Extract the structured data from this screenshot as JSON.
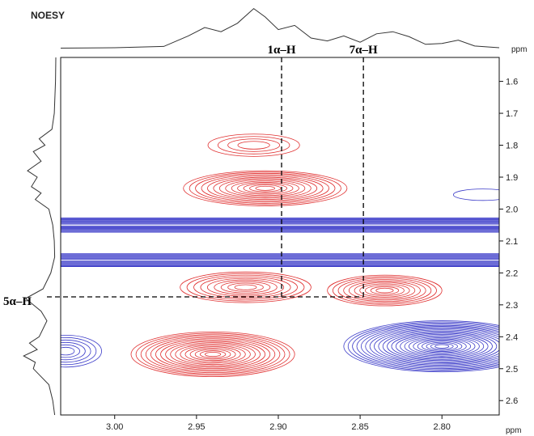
{
  "chart_data": {
    "type": "contour",
    "title": "NOESY",
    "x_unit": "ppm",
    "y_unit": "ppm",
    "xlim": [
      3.033,
      2.765
    ],
    "ylim": [
      1.525,
      2.645
    ],
    "x_ticks": [
      "3.00",
      "2.95",
      "2.90",
      "2.85",
      "2.80"
    ],
    "x_tick_values": [
      3.0,
      2.95,
      2.9,
      2.85,
      2.8
    ],
    "y_ticks": [
      "1.6",
      "1.7",
      "1.8",
      "1.9",
      "2.0",
      "2.1",
      "2.2",
      "2.3",
      "2.4",
      "2.5",
      "2.6"
    ],
    "y_tick_values": [
      1.6,
      1.7,
      1.8,
      1.9,
      2.0,
      2.1,
      2.2,
      2.3,
      2.4,
      2.5,
      2.6
    ],
    "positive_color": "#e03030",
    "negative_color": "#3a3ac8",
    "peaks": [
      {
        "sign": "positive",
        "x": 2.915,
        "y": 1.8,
        "wx": 0.028,
        "wy": 0.035,
        "levels": 4
      },
      {
        "sign": "positive",
        "x": 2.908,
        "y": 1.935,
        "wx": 0.05,
        "wy": 0.055,
        "levels": 13
      },
      {
        "sign": "positive",
        "x": 2.92,
        "y": 2.245,
        "wx": 0.04,
        "wy": 0.048,
        "levels": 9
      },
      {
        "sign": "positive",
        "x": 2.835,
        "y": 2.255,
        "wx": 0.035,
        "wy": 0.048,
        "levels": 10
      },
      {
        "sign": "positive",
        "x": 2.94,
        "y": 2.455,
        "wx": 0.05,
        "wy": 0.07,
        "levels": 16
      },
      {
        "sign": "negative",
        "x": 2.775,
        "y": 1.955,
        "wx": 0.018,
        "wy": 0.018,
        "levels": 1
      },
      {
        "sign": "negative",
        "x": 3.03,
        "y": 2.445,
        "wx": 0.022,
        "wy": 0.05,
        "levels": 6
      },
      {
        "sign": "negative",
        "x": 2.8,
        "y": 2.43,
        "wx": 0.06,
        "wy": 0.08,
        "levels": 22
      }
    ],
    "bands": [
      {
        "sign": "negative",
        "y": 2.05,
        "height": 0.045,
        "levels": 8
      },
      {
        "sign": "negative",
        "y": 2.16,
        "height": 0.04,
        "levels": 7
      }
    ],
    "annotations": [
      {
        "label": "1α–H",
        "x": 2.898,
        "y_end": 2.275
      },
      {
        "label": "7α–H",
        "x": 2.848,
        "y_end": 2.275
      },
      {
        "label": "5α–H",
        "y": 2.275,
        "x_end": 2.848
      }
    ],
    "top_projection": {
      "x": [
        3.033,
        3.0,
        2.97,
        2.955,
        2.945,
        2.935,
        2.925,
        2.915,
        2.908,
        2.9,
        2.89,
        2.88,
        2.87,
        2.86,
        2.85,
        2.84,
        2.83,
        2.82,
        2.81,
        2.8,
        2.79,
        2.78,
        2.765
      ],
      "y": [
        0.01,
        0.02,
        0.05,
        0.3,
        0.5,
        0.4,
        0.6,
        0.95,
        0.75,
        0.45,
        0.55,
        0.25,
        0.18,
        0.3,
        0.15,
        0.35,
        0.4,
        0.28,
        0.1,
        0.12,
        0.2,
        0.06,
        0.02
      ]
    },
    "left_projection": {
      "y": [
        1.525,
        1.6,
        1.7,
        1.75,
        1.78,
        1.8,
        1.82,
        1.85,
        1.88,
        1.9,
        1.93,
        1.95,
        1.97,
        2.0,
        2.05,
        2.1,
        2.15,
        2.2,
        2.25,
        2.28,
        2.32,
        2.35,
        2.4,
        2.42,
        2.44,
        2.46,
        2.48,
        2.5,
        2.55,
        2.6,
        2.645
      ],
      "v": [
        0.02,
        0.03,
        0.06,
        0.12,
        0.45,
        0.3,
        0.6,
        0.4,
        0.75,
        0.5,
        0.65,
        0.4,
        0.55,
        0.2,
        0.1,
        0.06,
        0.05,
        0.15,
        0.35,
        0.8,
        0.4,
        0.25,
        0.45,
        0.7,
        0.5,
        0.85,
        0.55,
        0.6,
        0.2,
        0.1,
        0.05
      ]
    }
  }
}
